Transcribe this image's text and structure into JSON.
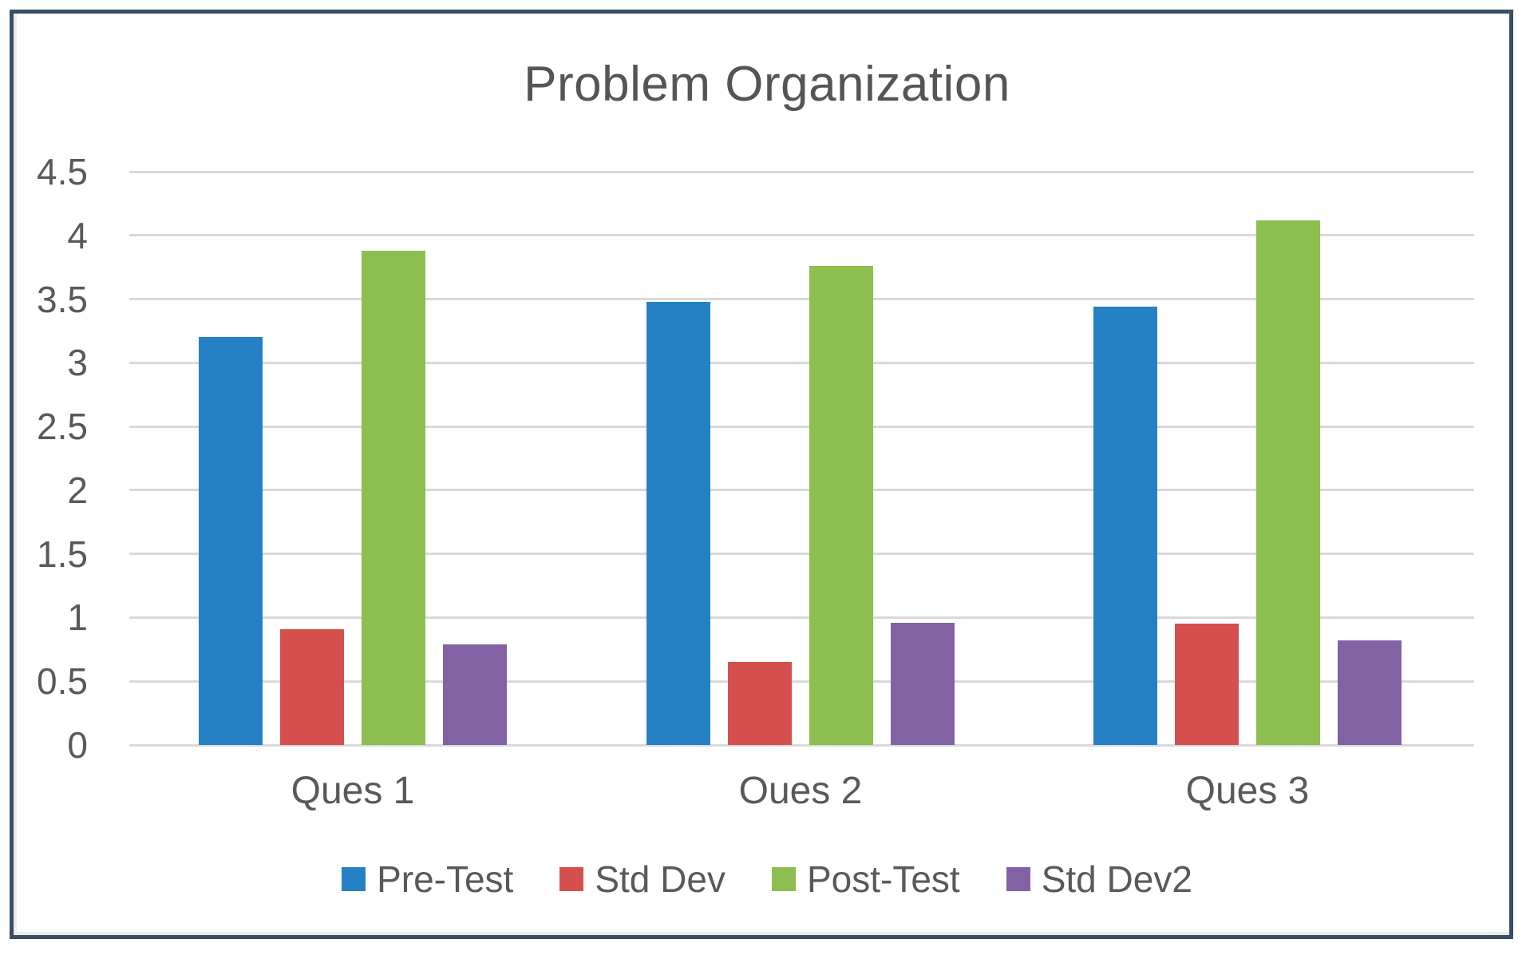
{
  "chart_data": {
    "type": "bar",
    "title": "Problem Organization",
    "categories": [
      "Ques 1",
      "Oues 2",
      "Ques 3"
    ],
    "series": [
      {
        "name": "Pre-Test",
        "color": "#2581C4",
        "values": [
          3.2,
          3.48,
          3.44
        ]
      },
      {
        "name": "Std Dev",
        "color": "#D5504D",
        "values": [
          0.91,
          0.65,
          0.95
        ]
      },
      {
        "name": "Post-Test",
        "color": "#8DBE50",
        "values": [
          3.88,
          3.76,
          4.12
        ]
      },
      {
        "name": "Std Dev2",
        "color": "#8262A3",
        "values": [
          0.79,
          0.96,
          0.82
        ]
      }
    ],
    "xlabel": "",
    "ylabel": "",
    "ylim": [
      0,
      4.5
    ],
    "ytick_step": 0.5,
    "yticks": [
      "4.5",
      "4",
      "3.5",
      "3",
      "2.5",
      "2",
      "1.5",
      "1",
      "0.5",
      "0"
    ],
    "grid": true,
    "legend_position": "bottom"
  },
  "frame": {
    "border_color": "#3A4E63"
  },
  "colors": {
    "text": "#595959",
    "title_text": "#555555",
    "gridline": "#D9D9D9",
    "background": "#FFFFFF"
  }
}
